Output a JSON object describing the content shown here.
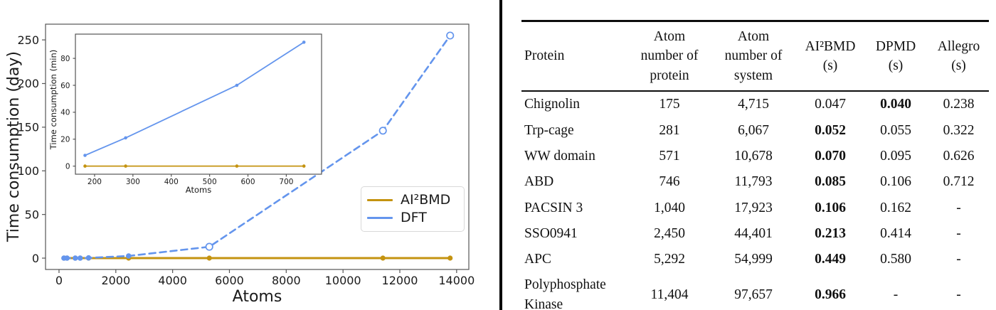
{
  "figure": {
    "colors": {
      "ai2bmd": "#c49310",
      "dft": "#6495ed",
      "spine": "#555555",
      "text": "#1a1a1a"
    }
  },
  "chart_data": [
    {
      "id": "main",
      "type": "line",
      "title": "",
      "xlabel": "Atoms",
      "ylabel": "Time consumption (day)",
      "xlim": [
        -475,
        14430
      ],
      "ylim": [
        -13,
        268
      ],
      "xticks": [
        0,
        2000,
        4000,
        6000,
        8000,
        10000,
        12000,
        14000
      ],
      "yticks": [
        0,
        50,
        100,
        150,
        200,
        250
      ],
      "grid": false,
      "legend_position": "lower right",
      "series": [
        {
          "name": "AI²BMD",
          "color": "#c49310",
          "dash": null,
          "lw": 3,
          "marker_r": 3.6,
          "open_min_y": null,
          "x": [
            175,
            281,
            571,
            746,
            1040,
            2450,
            5292,
            11404,
            13770
          ],
          "y": [
            0,
            0,
            0,
            0,
            0,
            0,
            0,
            0,
            0
          ]
        },
        {
          "name": "DFT",
          "color": "#6495ed",
          "dash": "9 6",
          "lw": 2.6,
          "marker_r": 3.8,
          "open_min_y": 5,
          "x": [
            175,
            281,
            571,
            746,
            1040,
            2450,
            5292,
            11404,
            13770
          ],
          "y": [
            0.005,
            0.015,
            0.042,
            0.064,
            0.3,
            2.5,
            13,
            146,
            255
          ]
        }
      ],
      "legend": {
        "entries": [
          {
            "label": "AI²BMD",
            "color": "#c49310"
          },
          {
            "label": "DFT",
            "color": "#6495ed"
          }
        ]
      }
    },
    {
      "id": "inset",
      "type": "line",
      "title": "",
      "xlabel": "Atoms",
      "ylabel": "Time consumption (min)",
      "xlim": [
        150,
        792
      ],
      "ylim": [
        -6,
        98
      ],
      "xticks": [
        200,
        300,
        400,
        500,
        600,
        700
      ],
      "yticks": [
        0,
        20,
        40,
        60,
        80
      ],
      "grid": false,
      "series": [
        {
          "name": "AI²BMD",
          "color": "#c49310",
          "dash": null,
          "lw": 1.8,
          "marker_r": 2.3,
          "open_min_y": null,
          "x": [
            175,
            281,
            571,
            746
          ],
          "y": [
            0,
            0,
            0,
            0
          ]
        },
        {
          "name": "DFT",
          "color": "#6495ed",
          "dash": null,
          "lw": 1.8,
          "marker_r": 2.3,
          "open_min_y": null,
          "x": [
            175,
            281,
            571,
            746
          ],
          "y": [
            8,
            21,
            60,
            92
          ]
        }
      ]
    }
  ],
  "table": {
    "columns": [
      {
        "key": "protein",
        "label": "Protein",
        "align": "left"
      },
      {
        "key": "atoms_protein",
        "label": "Atom\nnumber of\nprotein",
        "align": "center"
      },
      {
        "key": "atoms_system",
        "label": "Atom\nnumber of\nsystem",
        "align": "center"
      },
      {
        "key": "ai2bmd",
        "label": "AI²BMD\n(s)",
        "align": "center"
      },
      {
        "key": "dpmd",
        "label": "DPMD\n(s)",
        "align": "center"
      },
      {
        "key": "allegro",
        "label": "Allegro\n(s)",
        "align": "center"
      }
    ],
    "rows": [
      {
        "protein": "Chignolin",
        "atoms_protein": "175",
        "atoms_system": "4,715",
        "ai2bmd": "0.047",
        "dpmd": "0.040",
        "allegro": "0.238",
        "bold": "dpmd"
      },
      {
        "protein": "Trp-cage",
        "atoms_protein": "281",
        "atoms_system": "6,067",
        "ai2bmd": "0.052",
        "dpmd": "0.055",
        "allegro": "0.322",
        "bold": "ai2bmd"
      },
      {
        "protein": "WW domain",
        "atoms_protein": "571",
        "atoms_system": "10,678",
        "ai2bmd": "0.070",
        "dpmd": "0.095",
        "allegro": "0.626",
        "bold": "ai2bmd"
      },
      {
        "protein": "ABD",
        "atoms_protein": "746",
        "atoms_system": "11,793",
        "ai2bmd": "0.085",
        "dpmd": "0.106",
        "allegro": "0.712",
        "bold": "ai2bmd"
      },
      {
        "protein": "PACSIN 3",
        "atoms_protein": "1,040",
        "atoms_system": "17,923",
        "ai2bmd": "0.106",
        "dpmd": "0.162",
        "allegro": "-",
        "bold": "ai2bmd"
      },
      {
        "protein": "SSO0941",
        "atoms_protein": "2,450",
        "atoms_system": "44,401",
        "ai2bmd": "0.213",
        "dpmd": "0.414",
        "allegro": "-",
        "bold": "ai2bmd"
      },
      {
        "protein": "APC",
        "atoms_protein": "5,292",
        "atoms_system": "54,999",
        "ai2bmd": "0.449",
        "dpmd": "0.580",
        "allegro": "-",
        "bold": "ai2bmd"
      },
      {
        "protein": "Polyphosphate Kinase",
        "atoms_protein": "11,404",
        "atoms_system": "97,657",
        "ai2bmd": "0.966",
        "dpmd": "-",
        "allegro": "-",
        "bold": "ai2bmd"
      }
    ]
  }
}
